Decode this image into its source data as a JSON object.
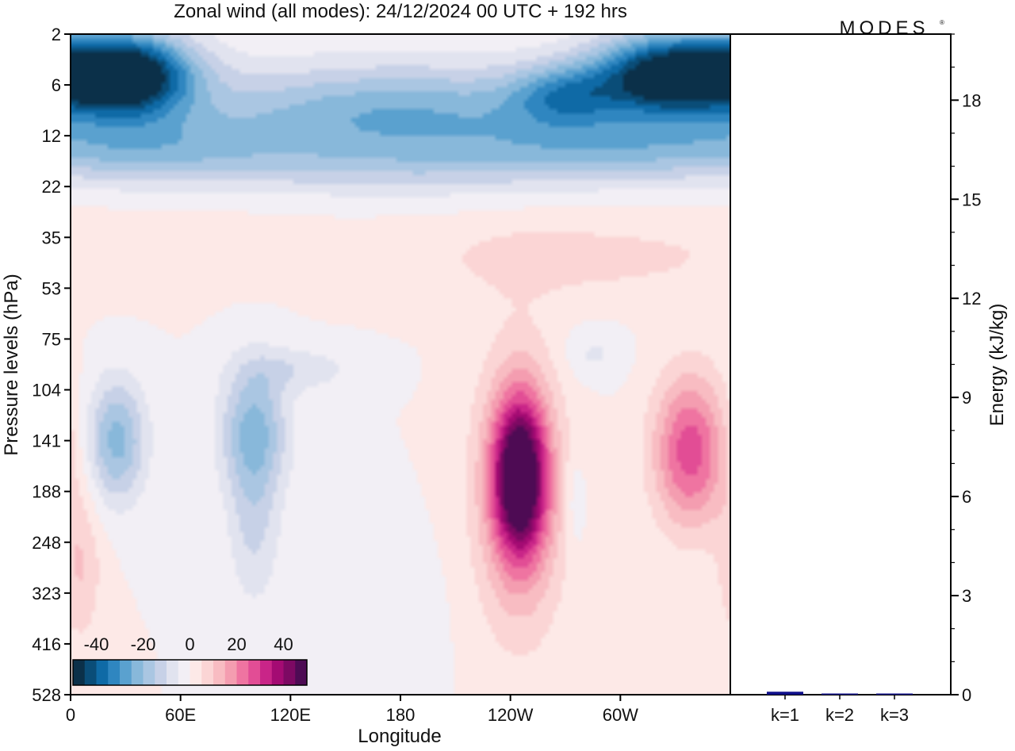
{
  "title": "Zonal wind (all modes):  24/12/2024  00 UTC  + 192 hrs",
  "logo": "MODES",
  "logo_mark": "®",
  "colors": {
    "neg": [
      "#0b3049",
      "#0a4d78",
      "#0f6aa6",
      "#2f86c0",
      "#5aa1cf",
      "#88b8da",
      "#aac6e2",
      "#c7d1e7",
      "#e1e3ef",
      "#f2eff5"
    ],
    "pos": [
      "#fde9e7",
      "#fbd5d5",
      "#f8bcc2",
      "#f49db0",
      "#ef74a1",
      "#e24d95",
      "#c92588",
      "#a40b73",
      "#7d0963",
      "#4e0b54"
    ],
    "bar": "#10108a",
    "axis": "#000000",
    "background": "#ffffff"
  },
  "chart_data": [
    {
      "type": "heatmap",
      "title": "Zonal wind (all modes):  24/12/2024  00 UTC  + 192 hrs",
      "xlabel": "Longitude",
      "ylabel": "Pressure levels (hPa)",
      "x_ticks": [
        "0",
        "60E",
        "120E",
        "180",
        "120W",
        "60W"
      ],
      "x_tick_values": [
        0,
        60,
        120,
        180,
        240,
        300
      ],
      "xlim": [
        0,
        360
      ],
      "y_ticks": [
        "2",
        "6",
        "12",
        "22",
        "35",
        "53",
        "75",
        "104",
        "141",
        "188",
        "248",
        "323",
        "416",
        "528"
      ],
      "colorbar": {
        "labels": [
          "-40",
          "-20",
          "0",
          "20",
          "40"
        ],
        "label_values": [
          -40,
          -20,
          0,
          20,
          40
        ],
        "range": [
          -50,
          50
        ],
        "step": 5
      },
      "features": [
        {
          "lon": 30,
          "level": 0.8,
          "lon_spread": 36,
          "level_spread": 0.8,
          "value": -55
        },
        {
          "lon": 330,
          "level": 0.8,
          "lon_spread": 42,
          "level_spread": 0.8,
          "value": -55
        },
        {
          "lon": 270,
          "level": 1.2,
          "lon_spread": 30,
          "level_spread": 0.6,
          "value": -20
        },
        {
          "lon": 180,
          "level": 1.6,
          "lon_spread": 120,
          "level_spread": 1.0,
          "value": -25
        },
        {
          "lon": 35,
          "level": 2.2,
          "lon_spread": 70,
          "level_spread": 0.7,
          "value": -15
        },
        {
          "lon": 300,
          "level": 2.2,
          "lon_spread": 70,
          "level_spread": 0.6,
          "value": -12
        },
        {
          "lon": 180,
          "level": 2.6,
          "lon_spread": 150,
          "level_spread": 0.6,
          "value": -8
        },
        {
          "lon": 270,
          "level": 4.4,
          "lon_spread": 90,
          "level_spread": 0.8,
          "value": 7
        },
        {
          "lon": 60,
          "level": 4.2,
          "lon_spread": 80,
          "level_spread": 0.8,
          "value": 3
        },
        {
          "lon": 25,
          "level": 8.0,
          "lon_spread": 16,
          "level_spread": 1.2,
          "value": -22
        },
        {
          "lon": 100,
          "level": 7.8,
          "lon_spread": 18,
          "level_spread": 1.3,
          "value": -22
        },
        {
          "lon": 125,
          "level": 6.6,
          "lon_spread": 30,
          "level_spread": 0.45,
          "value": -8
        },
        {
          "lon": 100,
          "level": 9.8,
          "lon_spread": 14,
          "level_spread": 1.5,
          "value": -10
        },
        {
          "lon": 285,
          "level": 6.3,
          "lon_spread": 16,
          "level_spread": 0.5,
          "value": -6
        },
        {
          "lon": 245,
          "level": 8.7,
          "lon_spread": 14,
          "level_spread": 1.5,
          "value": 44
        },
        {
          "lon": 245,
          "level": 9.0,
          "lon_spread": 24,
          "level_spread": 2.7,
          "value": 20
        },
        {
          "lon": 338,
          "level": 8.2,
          "lon_spread": 20,
          "level_spread": 1.5,
          "value": 28
        },
        {
          "lon": 275,
          "level": 9.2,
          "lon_spread": 6,
          "level_spread": 1.0,
          "value": -6
        },
        {
          "lon": 5,
          "level": 10.5,
          "lon_spread": 12,
          "level_spread": 1.5,
          "value": 10
        },
        {
          "lon": 165,
          "level": 11.5,
          "lon_spread": 30,
          "level_spread": 1.5,
          "value": -5
        }
      ]
    },
    {
      "type": "bar",
      "ylabel": "Energy (kJ/kg)",
      "categories": [
        "k=1",
        "k=2",
        "k=3"
      ],
      "values": [
        0.09,
        0.02,
        0.02
      ],
      "ylim": [
        0,
        20
      ],
      "y_ticks": [
        0,
        3,
        6,
        9,
        12,
        15,
        18
      ]
    }
  ]
}
